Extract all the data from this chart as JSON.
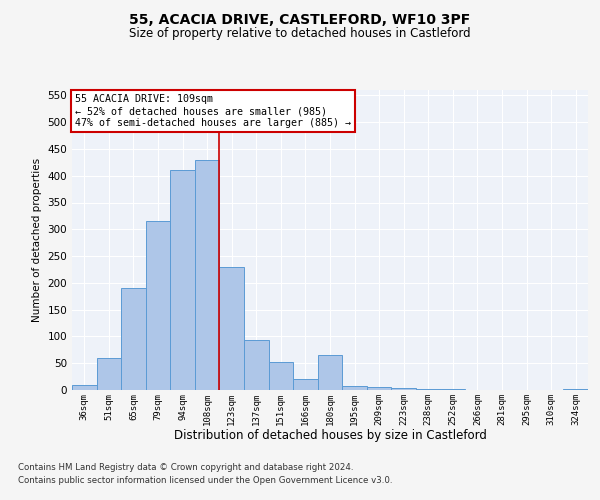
{
  "title1": "55, ACACIA DRIVE, CASTLEFORD, WF10 3PF",
  "title2": "Size of property relative to detached houses in Castleford",
  "xlabel": "Distribution of detached houses by size in Castleford",
  "ylabel": "Number of detached properties",
  "categories": [
    "36sqm",
    "51sqm",
    "65sqm",
    "79sqm",
    "94sqm",
    "108sqm",
    "123sqm",
    "137sqm",
    "151sqm",
    "166sqm",
    "180sqm",
    "195sqm",
    "209sqm",
    "223sqm",
    "238sqm",
    "252sqm",
    "266sqm",
    "281sqm",
    "295sqm",
    "310sqm",
    "324sqm"
  ],
  "values": [
    10,
    60,
    190,
    315,
    410,
    430,
    230,
    93,
    52,
    20,
    65,
    8,
    6,
    3,
    1,
    1,
    0,
    0,
    0,
    0,
    2
  ],
  "bar_color": "#aec6e8",
  "bar_edge_color": "#5b9bd5",
  "property_line_x": 5.5,
  "property_sqm": 109,
  "pct_smaller": 52,
  "n_smaller": 985,
  "pct_larger_semi": 47,
  "n_larger_semi": 885,
  "annotation_box_color": "#cc0000",
  "ylim": [
    0,
    560
  ],
  "yticks": [
    0,
    50,
    100,
    150,
    200,
    250,
    300,
    350,
    400,
    450,
    500,
    550
  ],
  "bg_color": "#eef2f9",
  "grid_color": "#ffffff",
  "footer1": "Contains HM Land Registry data © Crown copyright and database right 2024.",
  "footer2": "Contains public sector information licensed under the Open Government Licence v3.0."
}
